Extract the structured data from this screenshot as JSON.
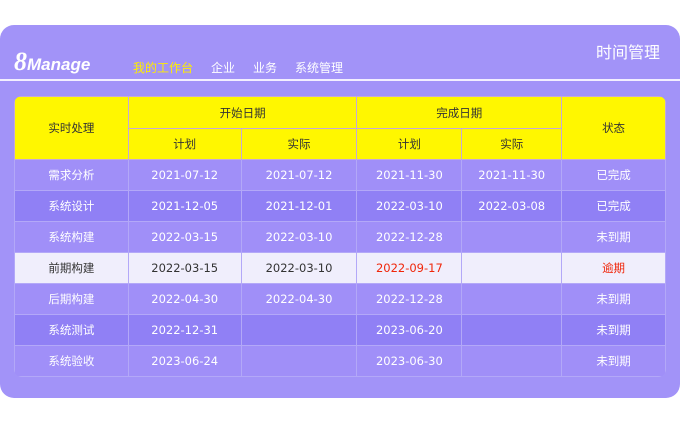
{
  "header": {
    "logo": "8Manage",
    "logo_num": "8",
    "logo_text": "Manage",
    "title": "时间管理",
    "nav": [
      {
        "label": "我的工作台",
        "active": true
      },
      {
        "label": "企业"
      },
      {
        "label": "业务"
      },
      {
        "label": "系统管理"
      }
    ]
  },
  "table": {
    "headers": {
      "task": "实时处理",
      "start": "开始日期",
      "finish": "完成日期",
      "status": "状态",
      "plan": "计划",
      "actual": "实际"
    },
    "rows": [
      [
        "需求分析",
        "2021-07-12",
        "2021-07-12",
        "2021-11-30",
        "2021-11-30",
        "已完成"
      ],
      [
        "系统设计",
        "2021-12-05",
        "2021-12-01",
        "2022-03-10",
        "2022-03-08",
        "已完成"
      ],
      [
        "系统构建",
        "2022-03-15",
        "2022-03-10",
        "2022-12-28",
        "",
        "未到期"
      ],
      [
        "前期构建",
        "2022-03-15",
        "2022-03-10",
        "2022-09-17",
        "",
        "逾期"
      ],
      [
        "后期构建",
        "2022-04-30",
        "2022-04-30",
        "2022-12-28",
        "",
        "未到期"
      ],
      [
        "系统测试",
        "2022-12-31",
        "",
        "2023-06-20",
        "",
        "未到期"
      ],
      [
        "系统验收",
        "2023-06-24",
        "",
        "2023-06-30",
        "",
        "未到期"
      ]
    ],
    "highlight_row": 3,
    "colors": {
      "overdue": "#f0260a",
      "header": "#fff700",
      "background": "#a293f8"
    }
  }
}
